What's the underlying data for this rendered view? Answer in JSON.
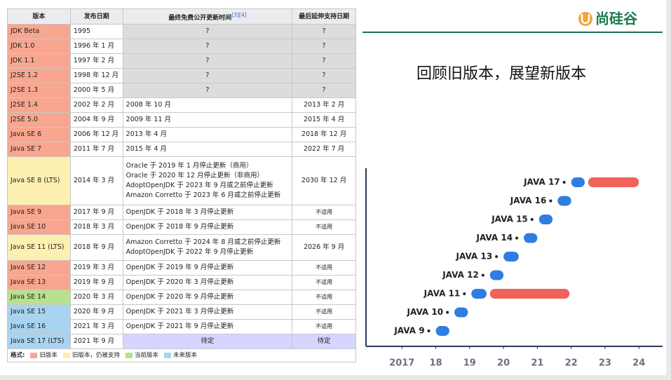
{
  "table": {
    "header": [
      "版本",
      "发布日期",
      "最终免费公开更新时间",
      "最后延伸支持日期"
    ],
    "header_note": "[3][4]",
    "rows": [
      [
        "JDK Beta",
        "1995",
        "?",
        "?"
      ],
      [
        "JDK 1.0",
        "1996 年 1 月",
        "?",
        "?"
      ],
      [
        "JDK 1.1",
        "1997 年 2 月",
        "?",
        "?"
      ],
      [
        "J2SE 1.2",
        "1998 年 12 月",
        "?",
        "?"
      ],
      [
        "J2SE 1.3",
        "2000 年 5 月",
        "?",
        "?"
      ],
      [
        "J2SE 1.4",
        "2002 年 2 月",
        "2008 年 10 月",
        "2013 年 2 月"
      ],
      [
        "J2SE 5.0",
        "2004 年 9 月",
        "2009 年 11 月",
        "2015 年 4 月"
      ],
      [
        "Java SE 6",
        "2006 年 12 月",
        "2013 年 4 月",
        "2018 年 12 月"
      ],
      [
        "Java SE 7",
        "2011 年 7 月",
        "2015 年 4 月",
        "2022 年 7 月"
      ],
      [
        "Java SE 8 (LTS)",
        "2014 年 3 月",
        [
          "Oracle 于 2019 年 1 月停止更新（商用）",
          "Oracle 于 2020 年 12 月停止更新（非商用）",
          "AdoptOpenJDK 于 2023 年 9 月或之前停止更新",
          "Amazon Corretto 于 2023 年 6 月或之前停止更新"
        ],
        "2030 年 12 月"
      ],
      [
        "Java SE 9",
        "2017 年 9 月",
        "OpenJDK 于 2018 年 3 月停止更新",
        "不适用"
      ],
      [
        "Java SE 10",
        "2018 年 3 月",
        "OpenJDK 于 2018 年 9 月停止更新",
        "不适用"
      ],
      [
        "Java SE 11 (LTS)",
        "2018 年 9 月",
        [
          "Amazon Corretto 于 2024 年 8 月或之前停止更新",
          "AdoptOpenJDK 于 2022 年 9 月停止更新"
        ],
        "2026 年 9 月"
      ],
      [
        "Java SE 12",
        "2019 年 3 月",
        "OpenJDK 于 2019 年 9 月停止更新",
        "不适用"
      ],
      [
        "Java SE 13",
        "2019 年 9 月",
        "OpenJDK 于 2020 年 3 月停止更新",
        "不适用"
      ],
      [
        "Java SE 14",
        "2020 年 3 月",
        "OpenJDK 于 2020 年 9 月停止更新",
        "不适用"
      ],
      [
        "Java SE 15",
        "2020 年 9 月",
        "OpenJDK 于 2021 年 3 月停止更新",
        "不适用"
      ],
      [
        "Java SE 16",
        "2021 年 3 月",
        "OpenJDK 于 2021 年 9 月停止更新",
        "不适用"
      ],
      [
        "Java SE 17 (LTS)",
        "2021 年 9 月",
        "待定",
        "待定"
      ]
    ],
    "legend_title": "格式:",
    "legend": [
      "旧版本",
      "旧版本，仍被支持",
      "当前版本",
      "未来版本"
    ]
  },
  "slide": {
    "logo": "尚硅谷",
    "title": "回顾旧版本，展望新版本"
  },
  "chart_data": {
    "type": "range-bar",
    "categories": [
      "JAVA 17",
      "JAVA 16",
      "JAVA 15",
      "JAVA 14",
      "JAVA 13",
      "JAVA 12",
      "JAVA 11",
      "JAVA 10",
      "JAVA 9"
    ],
    "series": [
      {
        "color": "#2f7de1",
        "start": [
          2022.0,
          2021.6,
          2021.05,
          2020.6,
          2020.0,
          2019.6,
          2019.05,
          2018.55,
          2018.0
        ],
        "end": [
          2022.4,
          2022.0,
          2021.45,
          2021.0,
          2020.45,
          2020.0,
          2019.5,
          2018.95,
          2018.4
        ]
      },
      {
        "color": "#f0625a",
        "start": [
          2022.5,
          null,
          null,
          null,
          null,
          null,
          2019.6,
          null,
          null
        ],
        "end": [
          2024.0,
          null,
          null,
          null,
          null,
          null,
          2021.95,
          null,
          null
        ]
      }
    ],
    "xlim": [
      2016,
      2024.7
    ],
    "xticks": [
      2017,
      {
        "value": 2018,
        "label": "18"
      },
      {
        "value": 2019,
        "label": "19"
      },
      {
        "value": 2020,
        "label": "20"
      },
      {
        "value": 2021,
        "label": "21"
      },
      {
        "value": 2022,
        "label": "22"
      },
      {
        "value": 2023,
        "label": "23"
      },
      {
        "value": 2024,
        "label": "24"
      }
    ]
  }
}
